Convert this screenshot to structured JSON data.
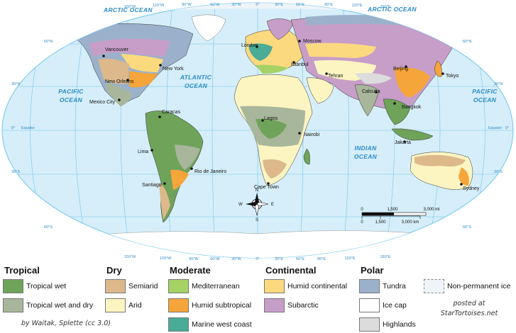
{
  "oceans": {
    "arctic": "ARCTIC OCEAN",
    "pacific_line1": "PACIFIC",
    "pacific_line2": "OCEAN",
    "atlantic_line1": "ATLANTIC",
    "atlantic_line2": "OCEAN",
    "indian_line1": "INDIAN",
    "indian_line2": "OCEAN"
  },
  "graticule": {
    "longitudes_top": [
      "150°W",
      "120°W",
      "90°W",
      "60°W",
      "30°W",
      "0°",
      "30°E",
      "60°E",
      "90°E",
      "120°E",
      "150°E"
    ],
    "longitudes_bottom": [
      "150°W",
      "120°W",
      "90°W",
      "60°W",
      "30°W",
      "0°",
      "30°E",
      "60°E",
      "90°E",
      "120°E",
      "150°E"
    ],
    "lat_60n": "60°N",
    "lat_30n": "30°N",
    "equator_deg": "0°",
    "equator_word": "Equator",
    "lat_30s": "30°S",
    "lat_60s": "60°S"
  },
  "cities": {
    "vancouver": "Vancouver",
    "new_york": "New York",
    "new_orleans": "New Orleans",
    "mexico_city": "Mexico City",
    "caracas": "Caracas",
    "lima": "Lima",
    "rio": "Rio de Janeiro",
    "santiago": "Santiago",
    "london": "London",
    "moscow": "Moscow",
    "istanbul": "Istanbul",
    "tehran": "Tehran",
    "beijing": "Beijing",
    "tokyo": "Tokyo",
    "calcutta": "Calcutta",
    "bangkok": "Bangkok",
    "lagos": "Lagos",
    "nairobi": "Nairobi",
    "jakarta": "Jakarta",
    "cape_town": "Cape Town",
    "sydney": "Sydney"
  },
  "compass": {
    "n": "N",
    "s": "S",
    "e": "E",
    "w": "W"
  },
  "scale": {
    "mi_0": "0",
    "mi_mid": "1,500",
    "mi_end": "3,000 mi",
    "km_0": "0",
    "km_mid": "1,500",
    "km_end": "3,000 km"
  },
  "colors": {
    "ocean": "#d6eef9",
    "grid": "#6ec6ee",
    "ice": "#eef4f8",
    "tropical_wet": "#6fa35a",
    "tropical_wet_dry": "#a8b69b",
    "semiarid": "#dcb88a",
    "arid": "#fcf5c2",
    "mediterranean": "#a4d264",
    "humid_subtropical": "#f6a53a",
    "marine_west_coast": "#4aab96",
    "humid_continental": "#fbd97f",
    "subarctic": "#c79ec8",
    "tundra": "#9bb1cb",
    "ice_cap": "#ffffff",
    "highlands": "#dcdcdc"
  },
  "legend": {
    "tropical": {
      "title": "Tropical",
      "items": [
        "Tropical wet",
        "Tropical wet and dry"
      ]
    },
    "dry": {
      "title": "Dry",
      "items": [
        "Semiarid",
        "Arid"
      ]
    },
    "moderate": {
      "title": "Moderate",
      "items": [
        "Mediterranean",
        "Humid subtropical",
        "Marine west coast"
      ]
    },
    "continental": {
      "title": "Continental",
      "items": [
        "Humid continental",
        "Subarctic"
      ]
    },
    "polar": {
      "title": "Polar",
      "items": [
        "Tundra",
        "Ice cap",
        "Highlands"
      ]
    },
    "other": {
      "items": [
        "Non-permanent ice"
      ]
    }
  },
  "credit": "by Waitak, Splette (cc 3.0)",
  "posted_line1": "posted at",
  "posted_line2": "StarTortoises.net"
}
